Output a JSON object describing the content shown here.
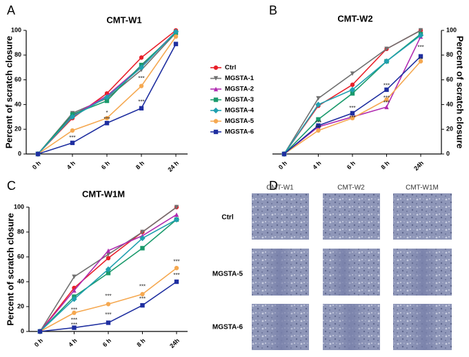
{
  "chart_data": [
    {
      "type": "line",
      "panel": "A",
      "title": "CMT-W1",
      "ylabel": "Percent of scratch closure",
      "categories": [
        "0 h",
        "4 h",
        "6 h",
        "8 h",
        "24 h"
      ],
      "ylim": [
        0,
        100
      ],
      "yticks": [
        0,
        20,
        40,
        60,
        80,
        100
      ],
      "series": [
        {
          "name": "Ctrl",
          "color": "#e8202a",
          "values": [
            0,
            29,
            49,
            78,
            100
          ]
        },
        {
          "name": "MGSTA-1",
          "color": "#707070",
          "values": [
            0,
            33,
            45,
            68,
            98
          ]
        },
        {
          "name": "MGSTA-2",
          "color": "#b02bb0",
          "values": [
            0,
            31,
            47,
            71,
            99
          ]
        },
        {
          "name": "MGSTA-3",
          "color": "#1a9a6c",
          "values": [
            0,
            32,
            43,
            72,
            98
          ]
        },
        {
          "name": "MGSTA-4",
          "color": "#20a0b0",
          "values": [
            0,
            30,
            46,
            70,
            99
          ]
        },
        {
          "name": "MGSTA-5",
          "color": "#f5a850",
          "values": [
            0,
            19,
            29,
            55,
            95
          ]
        },
        {
          "name": "MGSTA-6",
          "color": "#1f2fa0",
          "values": [
            0,
            9,
            25,
            37,
            89
          ]
        }
      ],
      "annotations": [
        {
          "text": "***",
          "category": "4 h",
          "y": 13
        },
        {
          "text": "*",
          "category": "6 h",
          "y": 33
        },
        {
          "text": "***",
          "category": "6 h",
          "y": 28
        },
        {
          "text": "***",
          "category": "8 h",
          "y": 61
        },
        {
          "text": "***",
          "category": "8 h",
          "y": 42
        }
      ]
    },
    {
      "type": "line",
      "panel": "B",
      "title": "CMT-W2",
      "ylabel": "Percent of scratch closure",
      "categories": [
        "0 h",
        "4 h",
        "6 h",
        "8 h",
        "24h"
      ],
      "ylim": [
        0,
        100
      ],
      "yticks": [
        0,
        20,
        40,
        60,
        80,
        100
      ],
      "series": [
        {
          "color": "#e8202a",
          "values": [
            0,
            39,
            56,
            85,
            100
          ]
        },
        {
          "color": "#707070",
          "values": [
            0,
            45,
            65,
            85,
            100
          ]
        },
        {
          "color": "#b02bb0",
          "values": [
            0,
            22,
            30,
            38,
            95
          ]
        },
        {
          "color": "#1a9a6c",
          "values": [
            0,
            28,
            49,
            75,
            97
          ]
        },
        {
          "color": "#20a0b0",
          "values": [
            0,
            40,
            52,
            75,
            96
          ]
        },
        {
          "color": "#f5a850",
          "values": [
            0,
            19,
            29,
            44,
            75
          ]
        },
        {
          "color": "#1f2fa0",
          "values": [
            0,
            23,
            33,
            52,
            79
          ]
        }
      ],
      "annotations": [
        {
          "text": "***",
          "category": "4 h",
          "y": 25
        },
        {
          "text": "***",
          "category": "4 h",
          "y": 21
        },
        {
          "text": "***",
          "category": "6 h",
          "y": 37
        },
        {
          "text": "***",
          "category": "6 h",
          "y": 29
        },
        {
          "text": "***",
          "category": "8 h",
          "y": 55
        },
        {
          "text": "***",
          "category": "8 h",
          "y": 45
        },
        {
          "text": "***",
          "category": "8 h",
          "y": 41
        },
        {
          "text": "***",
          "category": "24h",
          "y": 86
        },
        {
          "text": "**",
          "category": "24h",
          "y": 76
        }
      ]
    },
    {
      "type": "line",
      "panel": "C",
      "title": "CMT-W1M",
      "ylabel": "Percent of scratch closure",
      "categories": [
        "0 h",
        "4 h",
        "6 h",
        "8 h",
        "24h"
      ],
      "ylim": [
        0,
        100
      ],
      "yticks": [
        0,
        20,
        40,
        60,
        80,
        100
      ],
      "series": [
        {
          "color": "#e8202a",
          "values": [
            0,
            35,
            59,
            80,
            100
          ]
        },
        {
          "color": "#707070",
          "values": [
            0,
            44,
            62,
            80,
            100
          ]
        },
        {
          "color": "#b02bb0",
          "values": [
            0,
            33,
            65,
            77,
            94
          ]
        },
        {
          "color": "#1a9a6c",
          "values": [
            0,
            28,
            47,
            67,
            90
          ]
        },
        {
          "color": "#20a0b0",
          "values": [
            0,
            26,
            50,
            75,
            90
          ]
        },
        {
          "color": "#f5a850",
          "values": [
            0,
            15,
            22,
            30,
            51
          ]
        },
        {
          "color": "#1f2fa0",
          "values": [
            0,
            3,
            7,
            21,
            40
          ]
        }
      ],
      "annotations": [
        {
          "text": "***",
          "category": "4 h",
          "y": 17
        },
        {
          "text": "***",
          "category": "4 h",
          "y": 9
        },
        {
          "text": "***",
          "category": "4 h",
          "y": 5
        },
        {
          "text": "***",
          "category": "6 h",
          "y": 28
        },
        {
          "text": "***",
          "category": "6 h",
          "y": 13
        },
        {
          "text": "***",
          "category": "8 h",
          "y": 36
        },
        {
          "text": "***",
          "category": "8 h",
          "y": 26
        },
        {
          "text": "***",
          "category": "24h",
          "y": 56
        },
        {
          "text": "***",
          "category": "24h",
          "y": 45
        }
      ]
    }
  ],
  "images": {
    "panel": "D",
    "columns": [
      "CMT-W1",
      "CMT-W2",
      "CMT-W1M"
    ],
    "rows": [
      "Ctrl",
      "MGSTA-5",
      "MGSTA-6"
    ]
  }
}
